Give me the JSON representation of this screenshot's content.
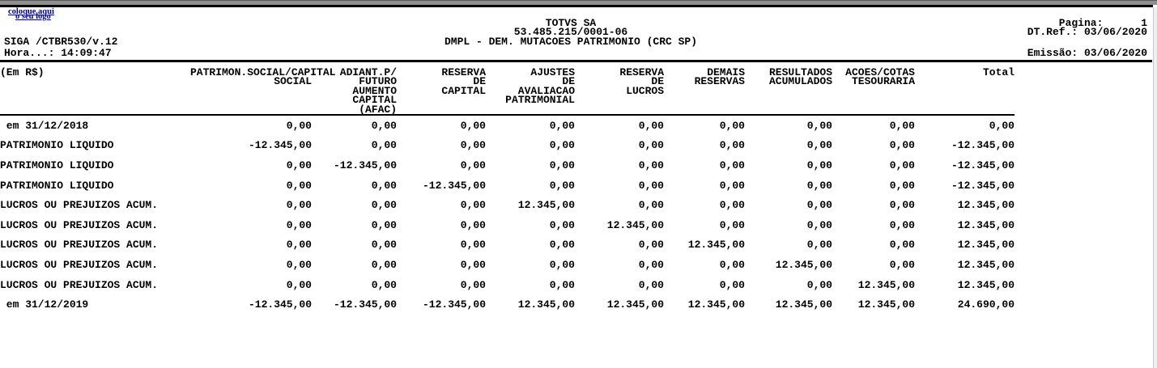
{
  "header": {
    "logo_line1": "coloque aqui",
    "logo_line2": "o seu logo",
    "program": "SIGA /CTBR530/v.12",
    "time": "Hora...: 14:09:47",
    "company": "TOTVS SA",
    "cnpj": "53.485.215/0001-06",
    "title": "DMPL - DEM. MUTACOES PATRIMONIO (CRC SP)",
    "page_line": "Pagina:      1",
    "ref_line": "DT.Ref.: 03/06/2020",
    "emission_line": "Emissão: 03/06/2020"
  },
  "table": {
    "currency_note": "(Em R$)",
    "columns": [
      "PATRIMON.SOCIAL/CAPITAL\nSOCIAL",
      "ADIANT.P/\nFUTURO\nAUMENTO\nCAPITAL\n(AFAC)",
      "RESERVA\nDE\nCAPITAL",
      "AJUSTES\nDE\nAVALIACAO\nPATRIMONIAL",
      "RESERVA\nDE\nLUCROS",
      "DEMAIS\nRESERVAS",
      "RESULTADOS\nACUMULADOS",
      "ACOES/COTAS\nTESOURARIA",
      "Total"
    ],
    "rows": [
      {
        "label": " em 31/12/2018",
        "values": [
          "0,00",
          "0,00",
          "0,00",
          "0,00",
          "0,00",
          "0,00",
          "0,00",
          "0,00",
          "0,00"
        ]
      },
      {
        "label": "PATRIMONIO LIQUIDO",
        "values": [
          "-12.345,00",
          "0,00",
          "0,00",
          "0,00",
          "0,00",
          "0,00",
          "0,00",
          "0,00",
          "-12.345,00"
        ]
      },
      {
        "label": "PATRIMONIO LIQUIDO",
        "values": [
          "0,00",
          "-12.345,00",
          "0,00",
          "0,00",
          "0,00",
          "0,00",
          "0,00",
          "0,00",
          "-12.345,00"
        ]
      },
      {
        "label": "PATRIMONIO LIQUIDO",
        "values": [
          "0,00",
          "0,00",
          "-12.345,00",
          "0,00",
          "0,00",
          "0,00",
          "0,00",
          "0,00",
          "-12.345,00"
        ]
      },
      {
        "label": "LUCROS OU PREJUIZOS ACUM.",
        "values": [
          "0,00",
          "0,00",
          "0,00",
          "12.345,00",
          "0,00",
          "0,00",
          "0,00",
          "0,00",
          "12.345,00"
        ]
      },
      {
        "label": "LUCROS OU PREJUIZOS ACUM.",
        "values": [
          "0,00",
          "0,00",
          "0,00",
          "0,00",
          "12.345,00",
          "0,00",
          "0,00",
          "0,00",
          "12.345,00"
        ]
      },
      {
        "label": "LUCROS OU PREJUIZOS ACUM.",
        "values": [
          "0,00",
          "0,00",
          "0,00",
          "0,00",
          "0,00",
          "12.345,00",
          "0,00",
          "0,00",
          "12.345,00"
        ]
      },
      {
        "label": "LUCROS OU PREJUIZOS ACUM.",
        "values": [
          "0,00",
          "0,00",
          "0,00",
          "0,00",
          "0,00",
          "0,00",
          "12.345,00",
          "0,00",
          "12.345,00"
        ]
      },
      {
        "label": "LUCROS OU PREJUIZOS ACUM.",
        "values": [
          "0,00",
          "0,00",
          "0,00",
          "0,00",
          "0,00",
          "0,00",
          "0,00",
          "12.345,00",
          "12.345,00"
        ]
      },
      {
        "label": " em 31/12/2019",
        "values": [
          "-12.345,00",
          "-12.345,00",
          "-12.345,00",
          "12.345,00",
          "12.345,00",
          "12.345,00",
          "12.345,00",
          "12.345,00",
          "24.690,00"
        ]
      }
    ]
  }
}
